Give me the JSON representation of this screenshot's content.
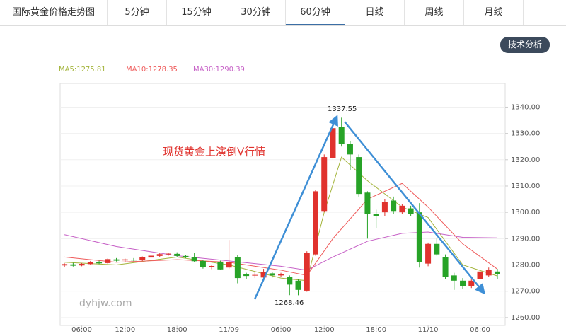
{
  "tabs": [
    "国际黄金价格走势图",
    "5分钟",
    "15分钟",
    "30分钟",
    "60分钟",
    "日线",
    "周线",
    "月线"
  ],
  "active_tab": 4,
  "button": "技术分析",
  "chart_data": {
    "type": "candlestick",
    "annotation": "现货黄金上演倒V行情",
    "high_label": "1337.55",
    "low_label": "1268.46",
    "watermark": "dyhjw.com",
    "up_color": "#e0322d",
    "down_color": "#27a327",
    "ylim": [
      1257,
      1349
    ],
    "yticks": [
      {
        "value": 1260,
        "label": "1260.00"
      },
      {
        "value": 1270,
        "label": "1270.00"
      },
      {
        "value": 1280,
        "label": "1280.00"
      },
      {
        "value": 1290,
        "label": "1290.00"
      },
      {
        "value": 1300,
        "label": "1300.00"
      },
      {
        "value": 1310,
        "label": "1310.00"
      },
      {
        "value": 1320,
        "label": "1320.00"
      },
      {
        "value": 1330,
        "label": "1330.00"
      },
      {
        "value": 1340,
        "label": "1340.00"
      }
    ],
    "xlim": [
      -0.5,
      50.9
    ],
    "xticks": [
      {
        "value": 2,
        "label": "06:00"
      },
      {
        "value": 7,
        "label": "12:00"
      },
      {
        "value": 13,
        "label": "18:00"
      },
      {
        "value": 19,
        "label": "11/09"
      },
      {
        "value": 25,
        "label": "06:00"
      },
      {
        "value": 30,
        "label": "12:00"
      },
      {
        "value": 36,
        "label": "18:00"
      },
      {
        "value": 42,
        "label": "11/10"
      },
      {
        "value": 48,
        "label": "06:00"
      }
    ],
    "grid": true,
    "open": [
      1279.8,
      1280.2,
      1279.8,
      1280.3,
      1281.0,
      1280.7,
      1282.1,
      1281.7,
      1282.0,
      1281.8,
      1282.8,
      1283.4,
      1284.0,
      1284.2,
      1283.4,
      1283.0,
      1281.5,
      1279.3,
      1281.0,
      1279.0,
      1283.0,
      1276.5,
      1276.0,
      1275.2,
      1276.8,
      1276.0,
      1275.5,
      1274.0,
      1270.2,
      1284.0,
      1300.5,
      1320.5,
      1332.5,
      1326.0,
      1321.0,
      1307.5,
      1299.5,
      1300.0,
      1304.5,
      1300.0,
      1301.5,
      1300.0,
      1280.5,
      1288.0,
      1283.0,
      1276.0,
      1274.0,
      1271.8,
      1274.5,
      1276.0,
      1277.5
    ],
    "high": [
      1280.6,
      1280.8,
      1280.7,
      1281.5,
      1281.6,
      1282.5,
      1282.6,
      1282.4,
      1282.6,
      1283.2,
      1283.8,
      1284.4,
      1284.6,
      1284.8,
      1283.9,
      1284.5,
      1282.0,
      1280.0,
      1281.6,
      1289.5,
      1283.8,
      1277.0,
      1277.5,
      1278.5,
      1277.4,
      1277.0,
      1276.0,
      1274.6,
      1285.2,
      1308.5,
      1322.0,
      1337.55,
      1336.0,
      1327.0,
      1322.0,
      1308.0,
      1301.0,
      1305.0,
      1306.0,
      1303.0,
      1302.5,
      1303.5,
      1288.5,
      1290.0,
      1284.0,
      1277.0,
      1275.0,
      1274.5,
      1278.0,
      1279.0,
      1278.5
    ],
    "low": [
      1279.3,
      1279.4,
      1279.5,
      1280.0,
      1280.3,
      1280.4,
      1281.3,
      1281.2,
      1281.4,
      1281.5,
      1282.4,
      1283.0,
      1283.5,
      1283.1,
      1282.6,
      1281.0,
      1278.6,
      1278.4,
      1278.0,
      1278.5,
      1273.0,
      1274.6,
      1275.0,
      1274.5,
      1275.2,
      1275.4,
      1268.5,
      1268.46,
      1269.8,
      1283.5,
      1300.0,
      1320.0,
      1325.0,
      1316.0,
      1306.0,
      1290.0,
      1294.0,
      1298.5,
      1299.5,
      1299.5,
      1298.5,
      1279.0,
      1279.5,
      1283.5,
      1274.5,
      1270.5,
      1271.0,
      1271.2,
      1274.0,
      1275.5,
      1274.5
    ],
    "close": [
      1280.3,
      1279.7,
      1280.4,
      1281.2,
      1280.6,
      1282.2,
      1281.6,
      1282.1,
      1281.7,
      1282.9,
      1283.5,
      1284.1,
      1284.3,
      1283.4,
      1283.0,
      1281.4,
      1279.2,
      1279.6,
      1278.3,
      1281.0,
      1275.0,
      1275.8,
      1276.2,
      1277.4,
      1276.0,
      1276.4,
      1272.5,
      1270.5,
      1284.5,
      1308.0,
      1321.0,
      1332.0,
      1326.0,
      1322.0,
      1307.0,
      1299.5,
      1298.5,
      1304.0,
      1300.5,
      1302.5,
      1299.5,
      1281.0,
      1288.0,
      1284.0,
      1275.5,
      1274.0,
      1272.0,
      1274.0,
      1277.5,
      1278.0,
      1276.5
    ],
    "series": [
      {
        "name": "MA5:1275.81",
        "color": "#a3b43a",
        "x": [
          0,
          6,
          13,
          19,
          25,
          28,
          30,
          32,
          35,
          39,
          42,
          46,
          50
        ],
        "values": [
          1281,
          1280,
          1283,
          1280,
          1275,
          1274,
          1300,
          1321,
          1312,
          1302,
          1298,
          1280,
          1275.8
        ]
      },
      {
        "name": "MA10:1278.35",
        "color": "#ef5b5b",
        "x": [
          0,
          6,
          13,
          19,
          25,
          28,
          31,
          35,
          39,
          42,
          46,
          50
        ],
        "values": [
          1283,
          1281,
          1282,
          1281,
          1278,
          1276,
          1290,
          1305,
          1311,
          1302,
          1288,
          1278.4
        ]
      },
      {
        "name": "MA30:1290.39",
        "color": "#c65fc6",
        "x": [
          0,
          6,
          13,
          19,
          25,
          28,
          31,
          35,
          39,
          42,
          46,
          50
        ],
        "values": [
          1291.5,
          1287,
          1283.5,
          1281.5,
          1279.5,
          1278,
          1283,
          1289,
          1292,
          1292.5,
          1290.5,
          1290.3
        ]
      }
    ]
  }
}
